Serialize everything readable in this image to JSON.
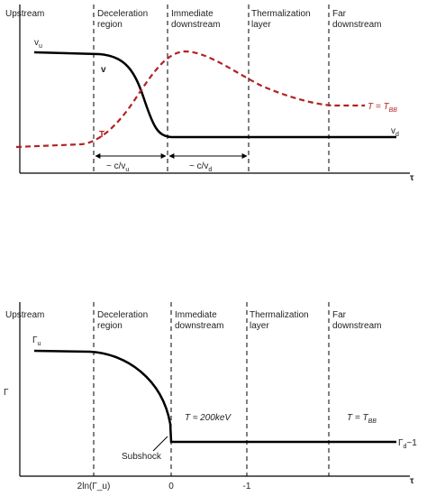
{
  "top_panel": {
    "regions": [
      [
        "Upstream"
      ],
      [
        "Deceleration",
        "region"
      ],
      [
        "Immediate",
        "downstream"
      ],
      [
        "Thermalization",
        "layer"
      ],
      [
        "Far",
        "downstream"
      ]
    ],
    "v_upstream": {
      "main": "v",
      "sub": "u"
    },
    "v_label": "v",
    "t_label": "T",
    "v_downstream": {
      "main": "v",
      "sub": "d"
    },
    "t_far": {
      "main": "T = T",
      "sub": "BB"
    },
    "width_upstream": {
      "main": "~ c/v",
      "sub": "u"
    },
    "width_downstream": {
      "main": "~ c/v",
      "sub": "d"
    },
    "x_axis_label": "τ"
  },
  "bottom_panel": {
    "y_axis_label": "Γ",
    "regions": [
      [
        "Upstream"
      ],
      [
        "Deceleration",
        "region"
      ],
      [
        "Immediate",
        "downstream"
      ],
      [
        "Thermalization",
        "layer"
      ],
      [
        "Far",
        "downstream"
      ]
    ],
    "gamma_upstream": {
      "main": "Γ",
      "sub": "u"
    },
    "t_immediate": "T ≈ 200keV",
    "t_far": {
      "main": "T = T",
      "sub": "BB"
    },
    "subshock": "Subshock",
    "gamma_downstream": {
      "main": "Γ",
      "sub": "d",
      "tail": "~1"
    },
    "x_ticks": [
      "2ln(Γ_u)",
      "0",
      "-1"
    ],
    "x_axis_label": "τ"
  }
}
